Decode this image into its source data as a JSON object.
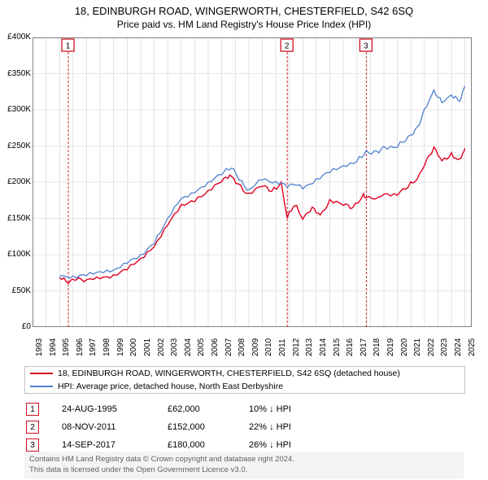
{
  "title": "18, EDINBURGH ROAD, WINGERWORTH, CHESTERFIELD, S42 6SQ",
  "subtitle": "Price paid vs. HM Land Registry's House Price Index (HPI)",
  "chart": {
    "type": "line",
    "background": "#ffffff",
    "grid_color": "#d0d0d0",
    "axis_color": "#808080",
    "xlim": [
      1993,
      2025.5
    ],
    "ylim": [
      0,
      400000
    ],
    "ytick_step": 50000,
    "yticks": [
      "£0",
      "£50K",
      "£100K",
      "£150K",
      "£200K",
      "£250K",
      "£300K",
      "£350K",
      "£400K"
    ],
    "xticks": [
      1993,
      1994,
      1995,
      1996,
      1997,
      1998,
      1999,
      2000,
      2001,
      2002,
      2003,
      2004,
      2005,
      2006,
      2007,
      2008,
      2009,
      2010,
      2011,
      2012,
      2013,
      2014,
      2015,
      2016,
      2017,
      2018,
      2019,
      2020,
      2021,
      2022,
      2023,
      2024,
      2025
    ],
    "label_fontsize": 10,
    "title_fontsize": 13,
    "markers": [
      {
        "n": "1",
        "year": 1995.65,
        "price": 62000,
        "border": "#d01020"
      },
      {
        "n": "2",
        "year": 2011.85,
        "price": 152000,
        "border": "#d01020"
      },
      {
        "n": "3",
        "year": 2017.7,
        "price": 180000,
        "border": "#d01020"
      }
    ],
    "series": [
      {
        "name": "price_paid",
        "color": "#e00020",
        "width": 1.4,
        "points": [
          [
            1995.0,
            68000
          ],
          [
            1995.65,
            62000
          ],
          [
            1996.2,
            66000
          ],
          [
            1997,
            65000
          ],
          [
            1998,
            67000
          ],
          [
            1999,
            72000
          ],
          [
            2000,
            80000
          ],
          [
            2001,
            93000
          ],
          [
            2002,
            113000
          ],
          [
            2003,
            140000
          ],
          [
            2004,
            168000
          ],
          [
            2005,
            176000
          ],
          [
            2006,
            186000
          ],
          [
            2007,
            202000
          ],
          [
            2007.6,
            210000
          ],
          [
            2008.2,
            198000
          ],
          [
            2009,
            182000
          ],
          [
            2010,
            196000
          ],
          [
            2010.7,
            188000
          ],
          [
            2011.4,
            198000
          ],
          [
            2011.85,
            152000
          ],
          [
            2012.4,
            170000
          ],
          [
            2013,
            150000
          ],
          [
            2013.7,
            165000
          ],
          [
            2014.3,
            155000
          ],
          [
            2015,
            173000
          ],
          [
            2016,
            170000
          ],
          [
            2016.7,
            165000
          ],
          [
            2017.5,
            182000
          ],
          [
            2017.7,
            180000
          ],
          [
            2018.5,
            177000
          ],
          [
            2019,
            185000
          ],
          [
            2020,
            183000
          ],
          [
            2020.8,
            195000
          ],
          [
            2021.5,
            205000
          ],
          [
            2022,
            225000
          ],
          [
            2022.7,
            248000
          ],
          [
            2023.3,
            230000
          ],
          [
            2024,
            238000
          ],
          [
            2024.6,
            230000
          ],
          [
            2025,
            248000
          ]
        ]
      },
      {
        "name": "hpi",
        "color": "#5080d0",
        "width": 1.3,
        "points": [
          [
            1995.0,
            70000
          ],
          [
            1996,
            70000
          ],
          [
            1997,
            72000
          ],
          [
            1998,
            75000
          ],
          [
            1999,
            80000
          ],
          [
            2000,
            88000
          ],
          [
            2001,
            98000
          ],
          [
            2002,
            118000
          ],
          [
            2003,
            148000
          ],
          [
            2004,
            178000
          ],
          [
            2005,
            187000
          ],
          [
            2006,
            198000
          ],
          [
            2007,
            212000
          ],
          [
            2007.7,
            221000
          ],
          [
            2008.5,
            200000
          ],
          [
            2009,
            188000
          ],
          [
            2010,
            205000
          ],
          [
            2011,
            200000
          ],
          [
            2011.85,
            195000
          ],
          [
            2012.5,
            197000
          ],
          [
            2013,
            192000
          ],
          [
            2014,
            204000
          ],
          [
            2015,
            214000
          ],
          [
            2016,
            222000
          ],
          [
            2017,
            230000
          ],
          [
            2017.7,
            242000
          ],
          [
            2018.5,
            241000
          ],
          [
            2019,
            248000
          ],
          [
            2020,
            250000
          ],
          [
            2020.8,
            262000
          ],
          [
            2021.5,
            275000
          ],
          [
            2022,
            300000
          ],
          [
            2022.7,
            326000
          ],
          [
            2023.3,
            310000
          ],
          [
            2024,
            320000
          ],
          [
            2024.6,
            312000
          ],
          [
            2025,
            332000
          ]
        ]
      }
    ]
  },
  "legend": [
    {
      "color": "#e00020",
      "label": "18, EDINBURGH ROAD, WINGERWORTH, CHESTERFIELD, S42 6SQ (detached house)"
    },
    {
      "color": "#5080d0",
      "label": "HPI: Average price, detached house, North East Derbyshire"
    }
  ],
  "sales": [
    {
      "n": "1",
      "date": "24-AUG-1995",
      "price": "£62,000",
      "delta": "10% ↓ HPI"
    },
    {
      "n": "2",
      "date": "08-NOV-2011",
      "price": "£152,000",
      "delta": "22% ↓ HPI"
    },
    {
      "n": "3",
      "date": "14-SEP-2017",
      "price": "£180,000",
      "delta": "26% ↓ HPI"
    }
  ],
  "footer_line1": "Contains HM Land Registry data © Crown copyright and database right 2024.",
  "footer_line2": "This data is licensed under the Open Government Licence v3.0.",
  "colors": {
    "marker_border": "#d01020",
    "marker_vline": "#d01020"
  }
}
